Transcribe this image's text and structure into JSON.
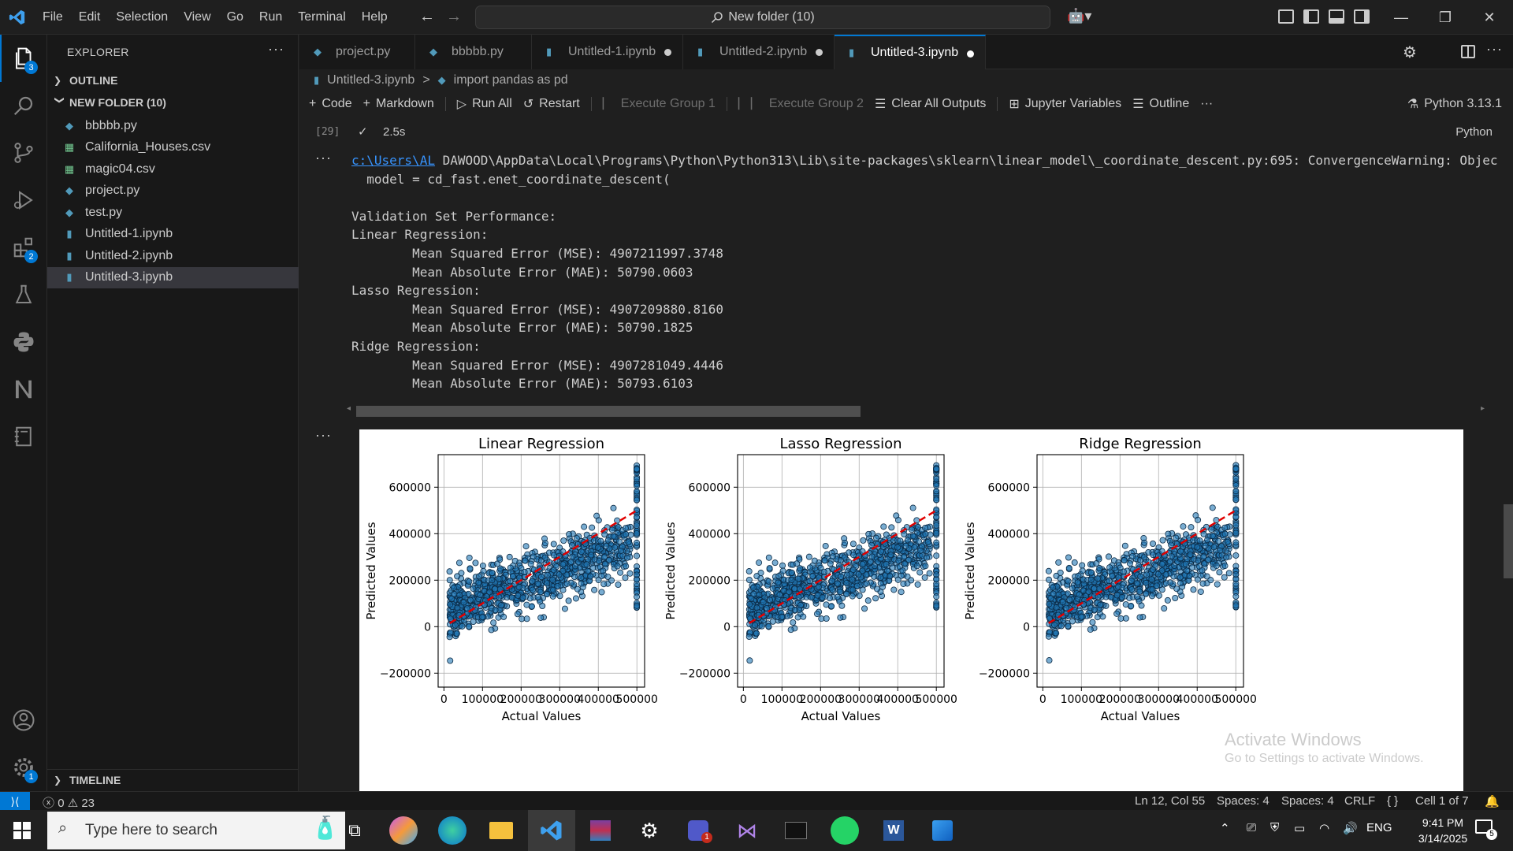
{
  "menu": [
    "File",
    "Edit",
    "Selection",
    "View",
    "Go",
    "Run",
    "Terminal",
    "Help"
  ],
  "command_center": "New folder (10)",
  "activity_badges": {
    "explorer": "3",
    "extensions": "2",
    "manage": "1"
  },
  "sidebar": {
    "title": "EXPLORER",
    "outline_label": "OUTLINE",
    "folder_label": "NEW FOLDER (10)",
    "files": [
      {
        "name": "bbbbb.py",
        "type": "py"
      },
      {
        "name": "California_Houses.csv",
        "type": "csv"
      },
      {
        "name": "magic04.csv",
        "type": "csv"
      },
      {
        "name": "project.py",
        "type": "py"
      },
      {
        "name": "test.py",
        "type": "py"
      },
      {
        "name": "Untitled-1.ipynb",
        "type": "ipynb"
      },
      {
        "name": "Untitled-2.ipynb",
        "type": "ipynb"
      },
      {
        "name": "Untitled-3.ipynb",
        "type": "ipynb",
        "active": true
      }
    ],
    "timeline_label": "TIMELINE"
  },
  "tabs": [
    {
      "label": "project.py"
    },
    {
      "label": "bbbbb.py"
    },
    {
      "label": "Untitled-1.ipynb"
    },
    {
      "label": "Untitled-2.ipynb"
    },
    {
      "label": "Untitled-3.ipynb"
    }
  ],
  "breadcrumb": {
    "file": "Untitled-3.ipynb",
    "separator": ">",
    "cell": "import pandas as pd"
  },
  "toolbar": {
    "code": "Code",
    "markdown": "Markdown",
    "run_all": "Run All",
    "restart": "Restart",
    "exec_group_1": "Execute Group 1",
    "exec_group_2": "Execute Group 2",
    "clear_outputs": "Clear All Outputs",
    "jupyter_vars": "Jupyter Variables",
    "outline": "Outline",
    "more": "···",
    "kernel": "Python 3.13.1"
  },
  "cell": {
    "exec_count": "[29]",
    "duration": "2.5s",
    "language": "Python",
    "dots": "···",
    "warning_link": "c:\\Users\\AL",
    "warning_rest": " DAWOOD\\AppData\\Local\\Programs\\Python\\Python313\\Lib\\site-packages\\sklearn\\linear_model\\_coordinate_descent.py:695: ConvergenceWarning: Objec",
    "output_lines": "  model = cd_fast.enet_coordinate_descent(\n\nValidation Set Performance:\nLinear Regression:\n        Mean Squared Error (MSE): 4907211997.3748\n        Mean Absolute Error (MAE): 50790.0603\nLasso Regression:\n        Mean Squared Error (MSE): 4907209880.8160\n        Mean Absolute Error (MAE): 50790.1825\nRidge Regression:\n        Mean Squared Error (MSE): 4907281049.4446\n        Mean Absolute Error (MAE): 50793.6103"
  },
  "chart_data": [
    {
      "type": "scatter",
      "title": "Linear Regression",
      "xlabel": "Actual Values",
      "ylabel": "Predicted Values",
      "xlim": [
        -15000,
        520000
      ],
      "ylim": [
        -260000,
        740000
      ],
      "xticks": [
        0,
        100000,
        200000,
        300000,
        400000,
        500000
      ],
      "xtick_labels": [
        "0",
        "100000",
        "200000",
        "300000",
        "400000",
        "500000"
      ],
      "yticks": [
        -200000,
        0,
        200000,
        400000,
        600000
      ],
      "ytick_labels": [
        "−200000",
        "0",
        "200000",
        "400000",
        "600000"
      ],
      "grid": true,
      "reference_line": {
        "x": [
          15000,
          500001
        ],
        "y": [
          15000,
          500001
        ],
        "style": "red dashed"
      }
    },
    {
      "type": "scatter",
      "title": "Lasso Regression",
      "xlabel": "Actual Values",
      "ylabel": "Predicted Values",
      "xlim": [
        -15000,
        520000
      ],
      "ylim": [
        -260000,
        740000
      ],
      "xticks": [
        0,
        100000,
        200000,
        300000,
        400000,
        500000
      ],
      "xtick_labels": [
        "0",
        "100000",
        "200000",
        "300000",
        "400000",
        "500000"
      ],
      "yticks": [
        -200000,
        0,
        200000,
        400000,
        600000
      ],
      "ytick_labels": [
        "−200000",
        "0",
        "200000",
        "400000",
        "600000"
      ],
      "grid": true,
      "reference_line": {
        "x": [
          15000,
          500001
        ],
        "y": [
          15000,
          500001
        ],
        "style": "red dashed"
      }
    },
    {
      "type": "scatter",
      "title": "Ridge Regression",
      "xlabel": "Actual Values",
      "ylabel": "Predicted Values",
      "xlim": [
        -15000,
        520000
      ],
      "ylim": [
        -260000,
        740000
      ],
      "xticks": [
        0,
        100000,
        200000,
        300000,
        400000,
        500000
      ],
      "xtick_labels": [
        "0",
        "100000",
        "200000",
        "300000",
        "400000",
        "500000"
      ],
      "yticks": [
        -200000,
        0,
        200000,
        400000,
        600000
      ],
      "ytick_labels": [
        "−200000",
        "0",
        "200000",
        "400000",
        "600000"
      ],
      "grid": true,
      "reference_line": {
        "x": [
          15000,
          500001
        ],
        "y": [
          15000,
          500001
        ],
        "style": "red dashed"
      }
    }
  ],
  "colors": {
    "accent": "#0078d4",
    "point_fill": "#1f77b4",
    "ref_line": "#e00000"
  },
  "watermark": {
    "line1": "Activate Windows",
    "line2": "Go to Settings to activate Windows."
  },
  "statusbar": {
    "errors": "0",
    "warnings": "23",
    "position": "Ln 12, Col 55",
    "spaces1": "Spaces: 4",
    "spaces2": "Spaces: 4",
    "eol": "CRLF",
    "braces": "{ }",
    "cell_info": "Cell 1 of 7",
    "bell_icon": "bell-icon"
  },
  "taskbar": {
    "search_placeholder": "Type here to search",
    "lang": "ENG",
    "time": "9:41 PM",
    "date": "3/14/2025",
    "notif_count": "5",
    "teams_badge": "1"
  }
}
